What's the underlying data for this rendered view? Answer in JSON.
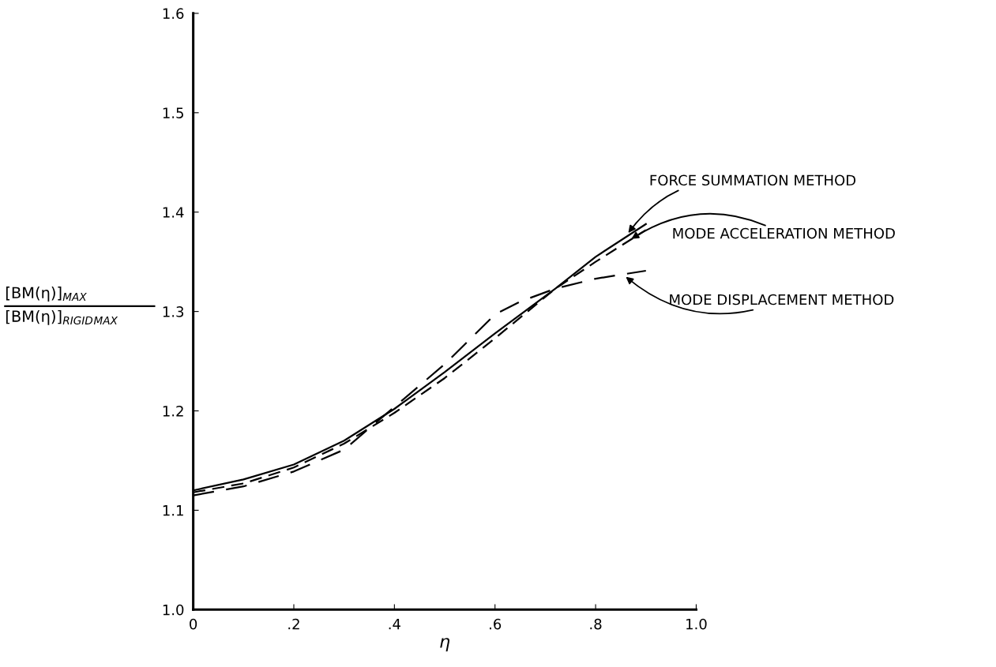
{
  "chart_data": {
    "type": "line",
    "xlabel": "η",
    "ylabel": [
      "[BM(η)]$_{MAX}$",
      "[BM(η)]$_{RIGID}$$_{MAX}$"
    ],
    "xlim": [
      0,
      1.0
    ],
    "ylim": [
      1.0,
      1.6
    ],
    "xticks": [
      0,
      {
        "value": 0.2,
        "label": ".2"
      },
      {
        "value": 0.4,
        "label": ".4"
      },
      {
        "value": 0.6,
        "label": ".6"
      },
      {
        "value": 0.8,
        "label": ".8"
      },
      {
        "value": 1.0,
        "label": "1.0"
      }
    ],
    "yticks": [
      {
        "value": 1.0,
        "label": "1.0"
      },
      {
        "value": 1.1,
        "label": "1.1"
      },
      {
        "value": 1.2,
        "label": "1.2"
      },
      {
        "value": 1.3,
        "label": "1.3"
      },
      {
        "value": 1.4,
        "label": "1.4"
      },
      {
        "value": 1.5,
        "label": "1.5"
      },
      {
        "value": 1.6,
        "label": "1.6"
      }
    ],
    "grid": false,
    "legend": false,
    "series": [
      {
        "color": "#000000",
        "line_style": "solid",
        "x": [
          0,
          0.1,
          0.2,
          0.3,
          0.4,
          0.5,
          0.6,
          0.72,
          0.8,
          0.9
        ],
        "values": [
          1.12,
          1.131,
          1.146,
          1.17,
          1.202,
          1.239,
          1.278,
          1.323,
          1.355,
          1.388
        ]
      },
      {
        "color": "#000000",
        "line_style": "dashed",
        "x": [
          0,
          0.1,
          0.2,
          0.3,
          0.4,
          0.5,
          0.6,
          0.72,
          0.8,
          0.9
        ],
        "values": [
          1.118,
          1.127,
          1.143,
          1.167,
          1.198,
          1.233,
          1.273,
          1.323,
          1.35,
          1.382
        ]
      },
      {
        "color": "#000000",
        "line_style": "dashed",
        "x": [
          0,
          0.1,
          0.2,
          0.3,
          0.4,
          0.5,
          0.6,
          0.65,
          0.72,
          0.8,
          0.9
        ],
        "values": [
          1.115,
          1.124,
          1.139,
          1.161,
          1.204,
          1.247,
          1.297,
          1.31,
          1.323,
          1.333,
          1.341
        ]
      }
    ],
    "annotations": [
      {
        "text": "FORCE SUMMATION METHOD",
        "x": 0.865,
        "y": 1.379
      },
      {
        "text": "MODE ACCELERATION METHOD",
        "x": 0.871,
        "y": 1.373
      },
      {
        "text": "MODE DISPLACEMENT METHOD",
        "x": 0.86,
        "y": 1.335
      }
    ]
  }
}
